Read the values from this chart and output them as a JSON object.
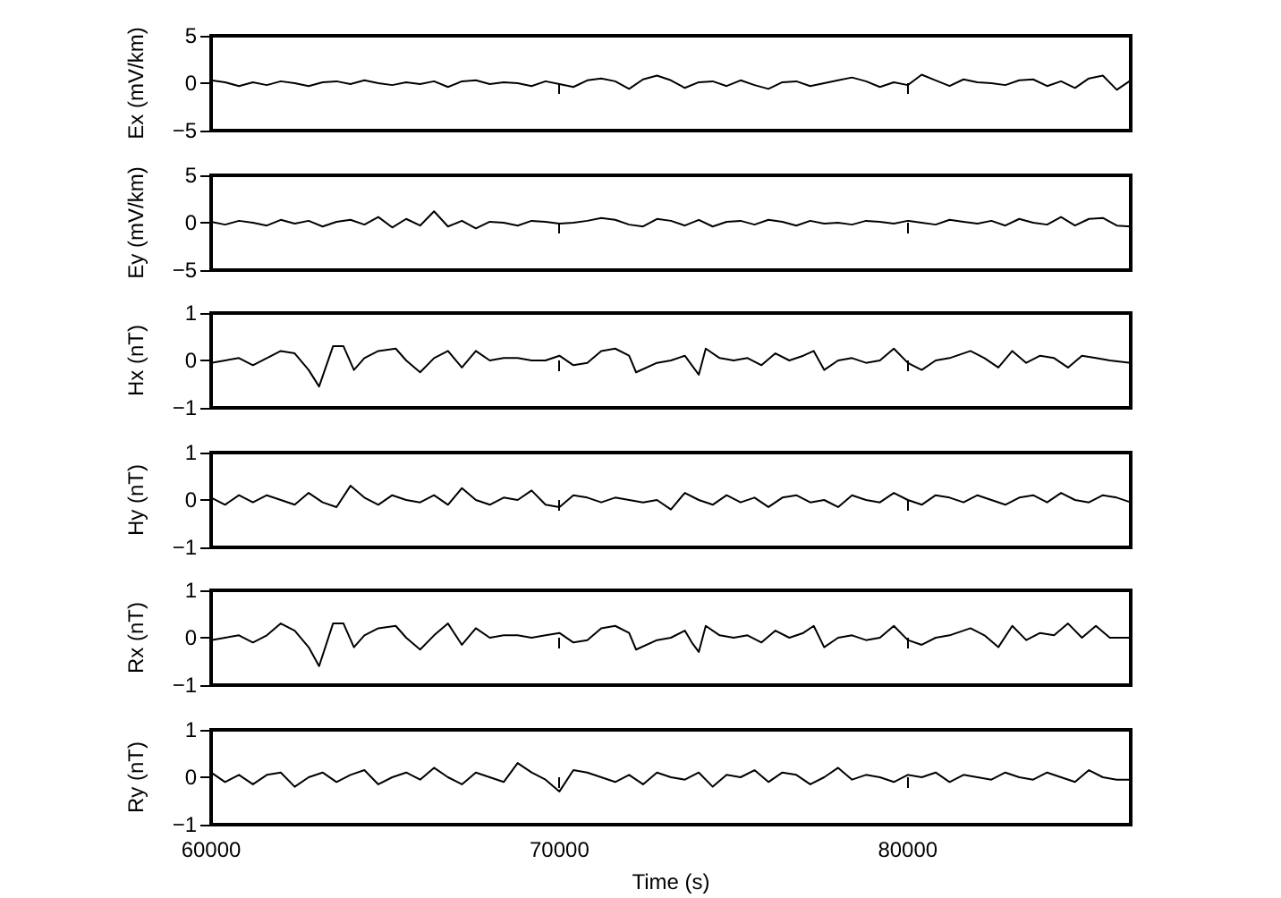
{
  "chart_data": [
    {
      "type": "line",
      "ylabel": "Ex (mV/km)",
      "color": "#000000",
      "tick_labels": "y",
      "xlim": [
        60000,
        86400
      ],
      "xticks": [
        60000,
        70000,
        80000
      ],
      "ylim": [
        -5,
        5
      ],
      "yticks": [
        -5,
        0,
        5
      ],
      "x": [
        60000,
        60400,
        60800,
        61200,
        61600,
        62000,
        62400,
        62800,
        63200,
        63600,
        64000,
        64400,
        64800,
        65200,
        65600,
        66000,
        66400,
        66800,
        67200,
        67600,
        68000,
        68400,
        68800,
        69200,
        69600,
        70000,
        70400,
        70800,
        71200,
        71600,
        72000,
        72400,
        72800,
        73200,
        73600,
        74000,
        74400,
        74800,
        75200,
        75600,
        76000,
        76400,
        76800,
        77200,
        77600,
        78000,
        78400,
        78800,
        79200,
        79600,
        80000,
        80400,
        80800,
        81200,
        81600,
        82000,
        82400,
        82800,
        83200,
        83600,
        84000,
        84400,
        84800,
        85200,
        85600,
        86000,
        86400
      ],
      "values": [
        0.3,
        0.1,
        -0.3,
        0.1,
        -0.2,
        0.2,
        0.0,
        -0.3,
        0.1,
        0.2,
        -0.1,
        0.3,
        0.0,
        -0.2,
        0.1,
        -0.1,
        0.2,
        -0.4,
        0.2,
        0.3,
        -0.1,
        0.1,
        0.0,
        -0.3,
        0.2,
        -0.1,
        -0.4,
        0.3,
        0.5,
        0.2,
        -0.6,
        0.4,
        0.8,
        0.3,
        -0.5,
        0.1,
        0.2,
        -0.3,
        0.3,
        -0.2,
        -0.6,
        0.1,
        0.2,
        -0.3,
        0.0,
        0.3,
        0.6,
        0.2,
        -0.4,
        0.1,
        -0.2,
        0.9,
        0.3,
        -0.3,
        0.4,
        0.1,
        0.0,
        -0.2,
        0.3,
        0.4,
        -0.3,
        0.2,
        -0.5,
        0.5,
        0.8,
        -0.7,
        0.3
      ]
    },
    {
      "type": "line",
      "ylabel": "Ey (mV/km)",
      "color": "#000000",
      "tick_labels": "y",
      "xlim": [
        60000,
        86400
      ],
      "xticks": [
        60000,
        70000,
        80000
      ],
      "ylim": [
        -5,
        5
      ],
      "yticks": [
        -5,
        0,
        5
      ],
      "x": [
        60000,
        60400,
        60800,
        61200,
        61600,
        62000,
        62400,
        62800,
        63200,
        63600,
        64000,
        64400,
        64800,
        65200,
        65600,
        66000,
        66400,
        66800,
        67200,
        67600,
        68000,
        68400,
        68800,
        69200,
        69600,
        70000,
        70400,
        70800,
        71200,
        71600,
        72000,
        72400,
        72800,
        73200,
        73600,
        74000,
        74400,
        74800,
        75200,
        75600,
        76000,
        76400,
        76800,
        77200,
        77600,
        78000,
        78400,
        78800,
        79200,
        79600,
        80000,
        80400,
        80800,
        81200,
        81600,
        82000,
        82400,
        82800,
        83200,
        83600,
        84000,
        84400,
        84800,
        85200,
        85600,
        86000,
        86400
      ],
      "values": [
        0.1,
        -0.2,
        0.2,
        0.0,
        -0.3,
        0.3,
        -0.1,
        0.2,
        -0.4,
        0.1,
        0.3,
        -0.2,
        0.6,
        -0.5,
        0.4,
        -0.3,
        1.2,
        -0.4,
        0.2,
        -0.6,
        0.1,
        0.0,
        -0.3,
        0.2,
        0.1,
        -0.1,
        0.0,
        0.2,
        0.5,
        0.3,
        -0.2,
        -0.4,
        0.4,
        0.2,
        -0.3,
        0.3,
        -0.4,
        0.1,
        0.2,
        -0.2,
        0.3,
        0.1,
        -0.3,
        0.2,
        -0.1,
        0.0,
        -0.2,
        0.2,
        0.1,
        -0.1,
        0.2,
        0.0,
        -0.2,
        0.3,
        0.1,
        -0.1,
        0.2,
        -0.3,
        0.4,
        0.0,
        -0.2,
        0.6,
        -0.3,
        0.4,
        0.5,
        -0.3,
        -0.4
      ]
    },
    {
      "type": "line",
      "ylabel": "Hx (nT)",
      "color": "#000000",
      "tick_labels": "y",
      "xlim": [
        60000,
        86400
      ],
      "xticks": [
        60000,
        70000,
        80000
      ],
      "ylim": [
        -1,
        1
      ],
      "yticks": [
        -1,
        0,
        1
      ],
      "x": [
        60000,
        60400,
        60800,
        61200,
        61600,
        62000,
        62400,
        62800,
        63100,
        63500,
        63800,
        64100,
        64400,
        64800,
        65300,
        65600,
        66000,
        66400,
        66800,
        67200,
        67600,
        68000,
        68400,
        68800,
        69200,
        69600,
        70000,
        70400,
        70800,
        71200,
        71600,
        72000,
        72200,
        72800,
        73200,
        73600,
        73800,
        74000,
        74200,
        74600,
        75000,
        75400,
        75800,
        76200,
        76600,
        77000,
        77300,
        77600,
        78000,
        78400,
        78800,
        79200,
        79600,
        80000,
        80400,
        80800,
        81200,
        81800,
        82200,
        82600,
        83000,
        83400,
        83800,
        84200,
        84600,
        85000,
        85400,
        85800,
        86400
      ],
      "values": [
        -0.05,
        0.0,
        0.05,
        -0.1,
        0.05,
        0.2,
        0.15,
        -0.2,
        -0.55,
        0.3,
        0.3,
        -0.2,
        0.05,
        0.2,
        0.25,
        0.0,
        -0.25,
        0.05,
        0.2,
        -0.15,
        0.2,
        0.0,
        0.05,
        0.05,
        0.0,
        0.0,
        0.1,
        -0.1,
        -0.05,
        0.2,
        0.25,
        0.1,
        -0.25,
        -0.05,
        0.0,
        0.1,
        -0.1,
        -0.3,
        0.25,
        0.05,
        0.0,
        0.05,
        -0.1,
        0.15,
        0.0,
        0.1,
        0.2,
        -0.2,
        0.0,
        0.05,
        -0.05,
        0.0,
        0.25,
        -0.05,
        -0.2,
        0.0,
        0.05,
        0.2,
        0.05,
        -0.15,
        0.2,
        -0.05,
        0.1,
        0.05,
        -0.15,
        0.1,
        0.05,
        0.0,
        -0.05
      ]
    },
    {
      "type": "line",
      "ylabel": "Hy (nT)",
      "color": "#000000",
      "tick_labels": "y",
      "xlim": [
        60000,
        86400
      ],
      "xticks": [
        60000,
        70000,
        80000
      ],
      "ylim": [
        -1,
        1
      ],
      "yticks": [
        -1,
        0,
        1
      ],
      "x": [
        60000,
        60400,
        60800,
        61200,
        61600,
        62000,
        62400,
        62800,
        63200,
        63600,
        64000,
        64400,
        64800,
        65200,
        65600,
        66000,
        66400,
        66800,
        67200,
        67600,
        68000,
        68400,
        68800,
        69200,
        69600,
        70000,
        70400,
        70800,
        71200,
        71600,
        72000,
        72400,
        72800,
        73200,
        73600,
        74000,
        74400,
        74800,
        75200,
        75600,
        76000,
        76400,
        76800,
        77200,
        77600,
        78000,
        78400,
        78800,
        79200,
        79600,
        80000,
        80400,
        80800,
        81200,
        81600,
        82000,
        82400,
        82800,
        83200,
        83600,
        84000,
        84400,
        84800,
        85200,
        85600,
        86000,
        86400
      ],
      "values": [
        0.05,
        -0.1,
        0.1,
        -0.05,
        0.1,
        0.0,
        -0.1,
        0.15,
        -0.05,
        -0.15,
        0.3,
        0.05,
        -0.1,
        0.1,
        0.0,
        -0.05,
        0.1,
        -0.1,
        0.25,
        0.0,
        -0.1,
        0.05,
        0.0,
        0.2,
        -0.1,
        -0.15,
        0.1,
        0.05,
        -0.05,
        0.05,
        0.0,
        -0.05,
        0.0,
        -0.2,
        0.15,
        0.0,
        -0.1,
        0.1,
        -0.05,
        0.05,
        -0.15,
        0.05,
        0.1,
        -0.05,
        0.0,
        -0.15,
        0.1,
        0.0,
        -0.05,
        0.15,
        0.0,
        -0.1,
        0.1,
        0.05,
        -0.05,
        0.1,
        0.0,
        -0.1,
        0.05,
        0.1,
        -0.05,
        0.15,
        0.0,
        -0.05,
        0.1,
        0.05,
        -0.05
      ]
    },
    {
      "type": "line",
      "ylabel": "Rx (nT)",
      "color": "#000000",
      "tick_labels": "y",
      "xlim": [
        60000,
        86400
      ],
      "xticks": [
        60000,
        70000,
        80000
      ],
      "ylim": [
        -1,
        1
      ],
      "yticks": [
        -1,
        0,
        1
      ],
      "x": [
        60000,
        60400,
        60800,
        61200,
        61600,
        62000,
        62400,
        62800,
        63100,
        63500,
        63800,
        64100,
        64400,
        64800,
        65300,
        65600,
        66000,
        66400,
        66800,
        67200,
        67600,
        68000,
        68400,
        68800,
        69200,
        69600,
        70000,
        70400,
        70800,
        71200,
        71600,
        72000,
        72200,
        72800,
        73200,
        73600,
        73800,
        74000,
        74200,
        74600,
        75000,
        75400,
        75800,
        76200,
        76600,
        77000,
        77300,
        77600,
        78000,
        78400,
        78800,
        79200,
        79600,
        80000,
        80400,
        80800,
        81200,
        81800,
        82200,
        82600,
        83000,
        83400,
        83800,
        84200,
        84600,
        85000,
        85400,
        85800,
        86400
      ],
      "values": [
        -0.05,
        0.0,
        0.05,
        -0.1,
        0.05,
        0.3,
        0.15,
        -0.2,
        -0.6,
        0.3,
        0.3,
        -0.2,
        0.05,
        0.2,
        0.25,
        0.0,
        -0.25,
        0.05,
        0.3,
        -0.15,
        0.2,
        0.0,
        0.05,
        0.05,
        0.0,
        0.05,
        0.1,
        -0.1,
        -0.05,
        0.2,
        0.25,
        0.1,
        -0.25,
        -0.05,
        0.0,
        0.15,
        -0.1,
        -0.3,
        0.25,
        0.05,
        0.0,
        0.05,
        -0.1,
        0.15,
        0.0,
        0.1,
        0.25,
        -0.2,
        0.0,
        0.05,
        -0.05,
        0.0,
        0.25,
        -0.05,
        -0.15,
        0.0,
        0.05,
        0.2,
        0.05,
        -0.2,
        0.25,
        -0.05,
        0.1,
        0.05,
        0.3,
        0.0,
        0.25,
        0.0,
        0.0
      ]
    },
    {
      "type": "line",
      "ylabel": "Ry (nT)",
      "xlabel": "Time (s)",
      "color": "#000000",
      "xlim": [
        60000,
        86400
      ],
      "xticks": [
        60000,
        70000,
        80000
      ],
      "ylim": [
        -1,
        1
      ],
      "yticks": [
        -1,
        0,
        1
      ],
      "x": [
        60000,
        60400,
        60800,
        61200,
        61600,
        62000,
        62400,
        62800,
        63200,
        63600,
        64000,
        64400,
        64800,
        65200,
        65600,
        66000,
        66400,
        66800,
        67200,
        67600,
        68000,
        68400,
        68800,
        69200,
        69600,
        70000,
        70400,
        70800,
        71200,
        71600,
        72000,
        72400,
        72800,
        73200,
        73600,
        74000,
        74400,
        74800,
        75200,
        75600,
        76000,
        76400,
        76800,
        77200,
        77600,
        78000,
        78400,
        78800,
        79200,
        79600,
        80000,
        80400,
        80800,
        81200,
        81600,
        82000,
        82400,
        82800,
        83200,
        83600,
        84000,
        84400,
        84800,
        85200,
        85600,
        86000,
        86400
      ],
      "values": [
        0.1,
        -0.1,
        0.05,
        -0.15,
        0.05,
        0.1,
        -0.2,
        0.0,
        0.1,
        -0.1,
        0.05,
        0.15,
        -0.15,
        0.0,
        0.1,
        -0.05,
        0.2,
        0.0,
        -0.15,
        0.1,
        0.0,
        -0.1,
        0.3,
        0.1,
        -0.05,
        -0.3,
        0.15,
        0.1,
        0.0,
        -0.1,
        0.05,
        -0.15,
        0.1,
        0.0,
        -0.05,
        0.1,
        -0.2,
        0.05,
        0.0,
        0.15,
        -0.1,
        0.1,
        0.05,
        -0.15,
        0.0,
        0.2,
        -0.05,
        0.05,
        0.0,
        -0.1,
        0.05,
        0.0,
        0.1,
        -0.1,
        0.05,
        0.0,
        -0.05,
        0.1,
        0.0,
        -0.05,
        0.1,
        0.0,
        -0.1,
        0.15,
        0.0,
        -0.05,
        -0.05
      ]
    }
  ]
}
